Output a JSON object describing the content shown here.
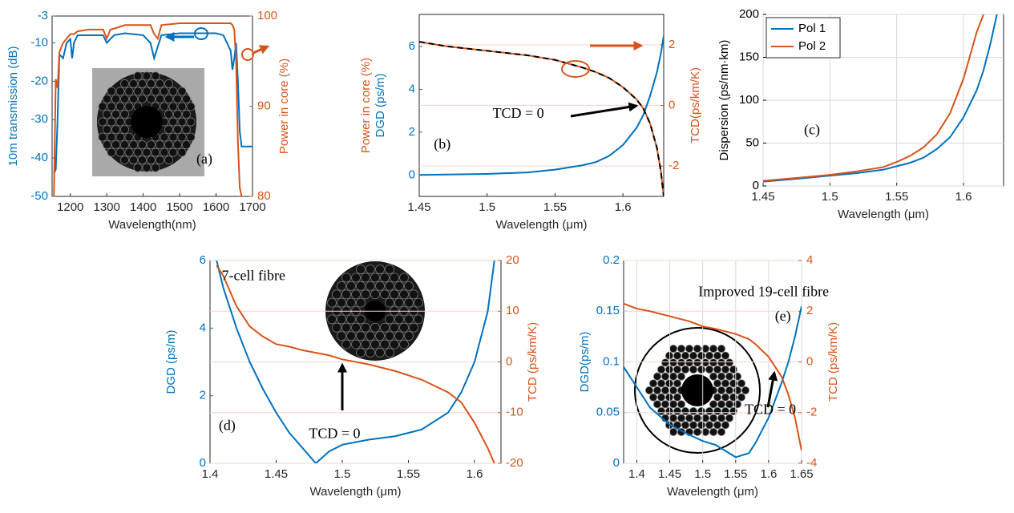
{
  "chart_data": [
    {
      "type": "line",
      "x_label": "Wavelength(nm)",
      "y_label": [
        {
          "text": "10m transmission (dB)",
          "color": "#0072bd"
        }
      ],
      "y2_label": {
        "text": "Power in core (%)",
        "color": "#d95319"
      },
      "y_color": "#0072bd",
      "y2_color": "#d95319",
      "x": [
        1155,
        1160,
        1165,
        1170,
        1180,
        1190,
        1200,
        1205,
        1210,
        1220,
        1250,
        1290,
        1300,
        1310,
        1320,
        1350,
        1400,
        1420,
        1430,
        1440,
        1450,
        1500,
        1550,
        1600,
        1620,
        1640,
        1645,
        1650,
        1655,
        1660,
        1665,
        1670,
        1680,
        1700
      ],
      "series": [
        {
          "color": "#0072bd",
          "values": [
            -44,
            -43,
            -30,
            -13,
            -14,
            -10,
            -9,
            -14,
            -10,
            -8,
            -8,
            -8,
            -10,
            -9,
            -8,
            -7.5,
            -8,
            -10,
            -14,
            -11,
            -8,
            -7.5,
            -7.5,
            -7.5,
            -8,
            -12,
            -17,
            -14,
            -10,
            -20,
            -33,
            -37,
            -37,
            -37
          ]
        },
        {
          "color": "#d95319",
          "axis": "y2",
          "values": [
            80,
            93,
            92,
            96,
            97,
            97.5,
            98,
            98,
            98,
            98.3,
            98.5,
            98.5,
            97.5,
            98.5,
            98.6,
            99,
            99,
            99,
            98,
            97.5,
            99,
            99.2,
            99.2,
            99.2,
            99.2,
            99.2,
            99,
            98.5,
            95,
            86,
            81,
            80,
            null,
            null
          ]
        }
      ],
      "xlim": [
        1150,
        1700
      ],
      "xticks": [
        1200,
        1300,
        1400,
        1500,
        1600,
        1700
      ],
      "ylim": [
        -50,
        -3
      ],
      "yticks": [
        -50,
        -40,
        -30,
        -20,
        -10,
        -3
      ],
      "y2lim": [
        80,
        100
      ],
      "y2ticks": [
        80,
        90,
        100
      ],
      "annotations": [
        "(a)"
      ]
    },
    {
      "type": "line",
      "x_label": "Wavelength (μm)",
      "y_label": [
        {
          "text": "Power in core (%)",
          "color": "#d95319"
        },
        {
          "text": "DGD (ps/m)",
          "color": "#0072bd"
        }
      ],
      "y2_label": {
        "text": "TCD(ps/km/K)",
        "color": "#d95319"
      },
      "y_color": "#0072bd",
      "y2_color": "#d95319",
      "x": [
        1.45,
        1.47,
        1.5,
        1.53,
        1.55,
        1.57,
        1.58,
        1.59,
        1.6,
        1.61,
        1.615,
        1.62,
        1.625,
        1.628,
        1.63
      ],
      "series": [
        {
          "color": "#0072bd",
          "values": [
            0,
            0.02,
            0.05,
            0.12,
            0.25,
            0.45,
            0.6,
            0.9,
            1.4,
            2.2,
            2.8,
            3.7,
            4.8,
            5.7,
            6.5
          ]
        },
        {
          "color": "#d95319",
          "axis": "y2",
          "values": [
            2.1,
            1.95,
            1.8,
            1.65,
            1.5,
            1.25,
            1.1,
            0.9,
            0.6,
            0.2,
            -0.1,
            -0.6,
            -1.4,
            -2.2,
            -3
          ]
        },
        {
          "color": "#000000",
          "axis": "y2",
          "dash": true,
          "values": [
            2.1,
            1.95,
            1.8,
            1.65,
            1.5,
            1.25,
            1.1,
            0.9,
            0.6,
            0.2,
            -0.1,
            -0.6,
            -1.4,
            -2.2,
            -3
          ]
        }
      ],
      "xlim": [
        1.45,
        1.63
      ],
      "xticks": [
        1.45,
        1.5,
        1.55,
        1.6
      ],
      "ylim": [
        -1,
        7.5
      ],
      "yticks": [
        0,
        2,
        4,
        6
      ],
      "y2lim": [
        -3,
        3
      ],
      "y2ticks": [
        -2,
        0,
        2
      ],
      "grid": [
        "y2"
      ],
      "annotations": [
        "TCD = 0",
        "(b)"
      ]
    },
    {
      "type": "line",
      "x_label": "Wavelength (μm)",
      "y_label": [
        {
          "text": "Dispersion (ps/nm·km)",
          "color": "#000000"
        }
      ],
      "y_color": "#000000",
      "x": [
        1.45,
        1.48,
        1.5,
        1.52,
        1.54,
        1.55,
        1.56,
        1.57,
        1.58,
        1.59,
        1.6,
        1.61,
        1.615,
        1.62,
        1.625
      ],
      "series": [
        {
          "name": "Pol 1",
          "color": "#0072bd",
          "values": [
            5,
            9,
            12,
            15,
            19,
            23,
            27,
            33,
            43,
            57,
            80,
            112,
            135,
            165,
            200
          ]
        },
        {
          "name": "Pol 2",
          "color": "#d95319",
          "values": [
            6,
            10,
            13,
            17,
            22,
            28,
            35,
            45,
            60,
            85,
            125,
            180,
            200,
            null,
            null
          ]
        }
      ],
      "xlim": [
        1.45,
        1.63
      ],
      "xticks": [
        1.45,
        1.5,
        1.55,
        1.6
      ],
      "ylim": [
        0,
        200
      ],
      "yticks": [
        0,
        50,
        100,
        150,
        200
      ],
      "grid": [
        "x",
        "y"
      ],
      "legend": "top-left",
      "annotations": [
        "(c)"
      ]
    },
    {
      "type": "line",
      "x_label": "Wavelength (μm)",
      "y_label": [
        {
          "text": "DGD (ps/m)",
          "color": "#0072bd"
        }
      ],
      "y2_label": {
        "text": "TCD (ps/km/K)",
        "color": "#d95319"
      },
      "y_color": "#0072bd",
      "y2_color": "#d95319",
      "x": [
        1.405,
        1.41,
        1.42,
        1.43,
        1.44,
        1.45,
        1.46,
        1.47,
        1.48,
        1.49,
        1.5,
        1.52,
        1.54,
        1.56,
        1.58,
        1.59,
        1.6,
        1.61,
        1.615
      ],
      "series": [
        {
          "color": "#0072bd",
          "values": [
            6,
            5.2,
            4.0,
            3.0,
            2.2,
            1.5,
            0.9,
            0.45,
            0,
            0.35,
            0.55,
            0.7,
            0.8,
            1.0,
            1.5,
            2.1,
            3.0,
            4.5,
            6
          ]
        },
        {
          "color": "#d95319",
          "axis": "y2",
          "values": [
            19,
            17,
            11,
            7,
            5,
            3.5,
            3,
            2.3,
            1.8,
            1.3,
            0.5,
            -0.5,
            -1.8,
            -3.5,
            -6,
            -8,
            -12,
            -17,
            -20
          ]
        }
      ],
      "xlim": [
        1.4,
        1.62
      ],
      "xticks": [
        1.4,
        1.45,
        1.5,
        1.55,
        1.6
      ],
      "ylim": [
        0,
        6
      ],
      "yticks": [
        0,
        2,
        4,
        6
      ],
      "y2lim": [
        -20,
        20
      ],
      "y2ticks": [
        -20,
        -10,
        0,
        10,
        20
      ],
      "grid": [
        "y2"
      ],
      "annotations": [
        "7-cell fibre",
        "TCD = 0",
        "(d)"
      ]
    },
    {
      "type": "line",
      "x_label": "Wavelength (μm)",
      "y_label": [
        {
          "text": "DGD(ps/m)",
          "color": "#0072bd"
        }
      ],
      "y2_label": {
        "text": "TCD (ps/km/K)",
        "color": "#d95319"
      },
      "y_color": "#0072bd",
      "y2_color": "#d95319",
      "x": [
        1.38,
        1.4,
        1.42,
        1.45,
        1.48,
        1.5,
        1.52,
        1.55,
        1.57,
        1.58,
        1.6,
        1.62,
        1.63,
        1.64,
        1.65
      ],
      "series": [
        {
          "color": "#0072bd",
          "values": [
            0.095,
            0.075,
            0.055,
            0.038,
            0.028,
            0.022,
            0.018,
            0.006,
            0.01,
            0.02,
            0.045,
            0.08,
            0.1,
            0.125,
            0.155
          ]
        },
        {
          "color": "#d95319",
          "axis": "y2",
          "values": [
            2.3,
            2.1,
            2.0,
            1.8,
            1.6,
            1.4,
            1.3,
            1.1,
            0.9,
            0.7,
            0.2,
            -0.6,
            -1.3,
            -2.2,
            -3.5
          ]
        }
      ],
      "xlim": [
        1.38,
        1.65
      ],
      "xticks": [
        1.4,
        1.45,
        1.5,
        1.55,
        1.6,
        1.65
      ],
      "ylim": [
        0,
        0.2
      ],
      "yticks": [
        0,
        0.05,
        0.1,
        0.15,
        0.2
      ],
      "y2lim": [
        -4,
        4
      ],
      "y2ticks": [
        -4,
        -2,
        0,
        2,
        4
      ],
      "grid": [
        "x",
        "y2"
      ],
      "annotations": [
        "Improved 19-cell fibre",
        "(e)",
        "TCD = 0"
      ]
    }
  ]
}
